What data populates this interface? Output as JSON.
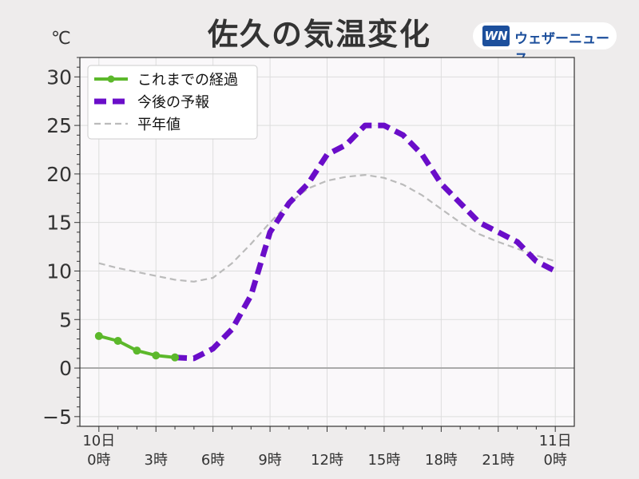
{
  "header": {
    "title": "佐久の気温変化",
    "unit": "℃",
    "logo_mark": "WN",
    "logo_text": "ウェザーニュース"
  },
  "chart_data": {
    "type": "line",
    "ylim": [
      -6,
      32
    ],
    "xlim": [
      -1,
      25
    ],
    "y_ticks": [
      -5,
      0,
      5,
      10,
      15,
      20,
      25,
      30
    ],
    "y_tick_labels": [
      "−5",
      "0",
      "5",
      "10",
      "15",
      "20",
      "25",
      "30"
    ],
    "x_ticks": [
      0,
      3,
      6,
      9,
      12,
      15,
      18,
      21,
      24
    ],
    "x_tick_labels": [
      [
        "10日",
        "0時"
      ],
      [
        "",
        "3時"
      ],
      [
        "",
        "6時"
      ],
      [
        "",
        "9時"
      ],
      [
        "",
        "12時"
      ],
      [
        "",
        "15時"
      ],
      [
        "",
        "18時"
      ],
      [
        "",
        "21時"
      ],
      [
        "11日",
        "0時"
      ]
    ],
    "grid": true,
    "legend_position": "top-left",
    "series": [
      {
        "name": "これまでの経過",
        "color": "#5cb82b",
        "style": "solid-markers",
        "x": [
          0,
          1,
          2,
          3,
          4
        ],
        "y": [
          3.3,
          2.8,
          1.8,
          1.3,
          1.1
        ]
      },
      {
        "name": "今後の予報",
        "color": "#6a0dc9",
        "style": "dashed-thick",
        "x": [
          4,
          5,
          6,
          7,
          8,
          9,
          10,
          11,
          12,
          13,
          14,
          15,
          16,
          17,
          18,
          19,
          20,
          21,
          22,
          23,
          24
        ],
        "y": [
          1.1,
          1.0,
          2.0,
          4.0,
          7.5,
          14.0,
          17.0,
          19.0,
          22.0,
          23.0,
          25.0,
          25.0,
          24.0,
          22.0,
          19.0,
          17.0,
          15.0,
          14.0,
          13.0,
          11.0,
          10.0
        ]
      },
      {
        "name": "平年値",
        "color": "#bbbbbb",
        "style": "dashed-thin",
        "x": [
          0,
          1,
          2,
          3,
          4,
          5,
          6,
          7,
          8,
          9,
          10,
          11,
          12,
          13,
          14,
          15,
          16,
          17,
          18,
          19,
          20,
          21,
          22,
          23,
          24
        ],
        "y": [
          10.8,
          10.3,
          9.9,
          9.5,
          9.1,
          8.9,
          9.3,
          10.8,
          12.8,
          15.0,
          17.0,
          18.5,
          19.3,
          19.7,
          19.9,
          19.6,
          18.9,
          17.8,
          16.4,
          15.0,
          13.8,
          13.0,
          12.3,
          11.6,
          11.0
        ]
      }
    ]
  }
}
